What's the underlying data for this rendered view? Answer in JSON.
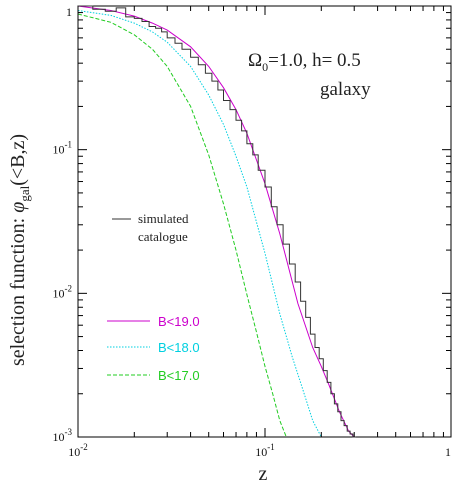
{
  "chart_data": {
    "type": "line",
    "xscale": "log",
    "yscale": "log",
    "xlim": [
      0.01,
      1
    ],
    "ylim": [
      0.001,
      1
    ],
    "xlabel": "z",
    "ylabel_main": "selection function: ",
    "ylabel_phi": "φ",
    "ylabel_sub": "gal",
    "ylabel_tail": "(<B,z)",
    "x_ticks": [
      {
        "value": 0.01,
        "base": "10",
        "exp": "-2"
      },
      {
        "value": 0.1,
        "base": "10",
        "exp": "-1"
      },
      {
        "value": 1,
        "base": "1",
        "exp": ""
      }
    ],
    "y_ticks": [
      {
        "value": 1,
        "base": "1",
        "exp": ""
      },
      {
        "value": 0.1,
        "base": "10",
        "exp": "-1"
      },
      {
        "value": 0.01,
        "base": "10",
        "exp": "-2"
      },
      {
        "value": 0.001,
        "base": "10",
        "exp": "-3"
      }
    ],
    "annotation": {
      "omega": "Ω",
      "omega_sub": "0",
      "params": "=1.0,  h=  0.5",
      "object": "galaxy"
    },
    "histogram_label_1": "simulated",
    "histogram_label_2": "catalogue",
    "series": [
      {
        "name": "B<19.0",
        "color": "#cc00cc",
        "style": "solid",
        "x": [
          0.01,
          0.015,
          0.02,
          0.025,
          0.03,
          0.04,
          0.05,
          0.06,
          0.07,
          0.08,
          0.1,
          0.12,
          0.15,
          0.18,
          0.2,
          0.22,
          0.25,
          0.28,
          0.3
        ],
        "y": [
          1.0,
          0.93,
          0.85,
          0.76,
          0.68,
          0.52,
          0.38,
          0.27,
          0.19,
          0.13,
          0.058,
          0.026,
          0.0085,
          0.0042,
          0.0031,
          0.0023,
          0.0015,
          0.0011,
          0.001
        ]
      },
      {
        "name": "B<18.0",
        "color": "#00d0e0",
        "style": "dotted",
        "x": [
          0.01,
          0.015,
          0.02,
          0.025,
          0.03,
          0.04,
          0.05,
          0.06,
          0.07,
          0.08,
          0.1,
          0.12,
          0.14,
          0.16,
          0.18,
          0.2
        ],
        "y": [
          0.93,
          0.86,
          0.76,
          0.66,
          0.56,
          0.38,
          0.24,
          0.15,
          0.09,
          0.055,
          0.019,
          0.0072,
          0.0036,
          0.0021,
          0.0013,
          0.001
        ]
      },
      {
        "name": "B<17.0",
        "color": "#22cc22",
        "style": "dashed",
        "x": [
          0.01,
          0.015,
          0.02,
          0.025,
          0.03,
          0.04,
          0.05,
          0.06,
          0.07,
          0.08,
          0.09,
          0.1,
          0.11,
          0.12,
          0.13
        ],
        "y": [
          0.88,
          0.77,
          0.63,
          0.5,
          0.38,
          0.2,
          0.092,
          0.042,
          0.02,
          0.0098,
          0.0054,
          0.0031,
          0.002,
          0.0013,
          0.001
        ]
      }
    ],
    "histogram": {
      "name": "simulated catalogue",
      "color": "#333333",
      "edges": [
        0.01,
        0.012,
        0.014,
        0.016,
        0.018,
        0.02,
        0.022,
        0.024,
        0.026,
        0.028,
        0.03,
        0.033,
        0.036,
        0.04,
        0.044,
        0.048,
        0.052,
        0.056,
        0.06,
        0.065,
        0.07,
        0.075,
        0.08,
        0.086,
        0.092,
        0.1,
        0.108,
        0.116,
        0.125,
        0.135,
        0.145,
        0.155,
        0.165,
        0.175,
        0.185,
        0.195,
        0.205,
        0.215,
        0.225,
        0.235,
        0.245,
        0.255,
        0.265,
        0.275,
        0.285,
        0.295,
        0.305
      ],
      "values": [
        1.0,
        0.95,
        0.92,
        0.97,
        0.84,
        0.82,
        0.78,
        0.72,
        0.7,
        0.66,
        0.6,
        0.55,
        0.5,
        0.44,
        0.39,
        0.34,
        0.3,
        0.26,
        0.22,
        0.19,
        0.16,
        0.135,
        0.11,
        0.092,
        0.072,
        0.055,
        0.04,
        0.03,
        0.022,
        0.016,
        0.012,
        0.0088,
        0.0068,
        0.0052,
        0.0042,
        0.0035,
        0.0029,
        0.0024,
        0.002,
        0.0017,
        0.0015,
        0.0013,
        0.0012,
        0.0011,
        0.00105,
        0.001
      ]
    },
    "legend": [
      {
        "label": "B<19.0",
        "color": "#cc00cc",
        "style": "solid"
      },
      {
        "label": "B<18.0",
        "color": "#00d0e0",
        "style": "dotted"
      },
      {
        "label": "B<17.0",
        "color": "#22cc22",
        "style": "dashed"
      }
    ],
    "legend_placement": "bottom-left inside plot",
    "annotation_placement": "top-right inside plot",
    "grid": false
  }
}
